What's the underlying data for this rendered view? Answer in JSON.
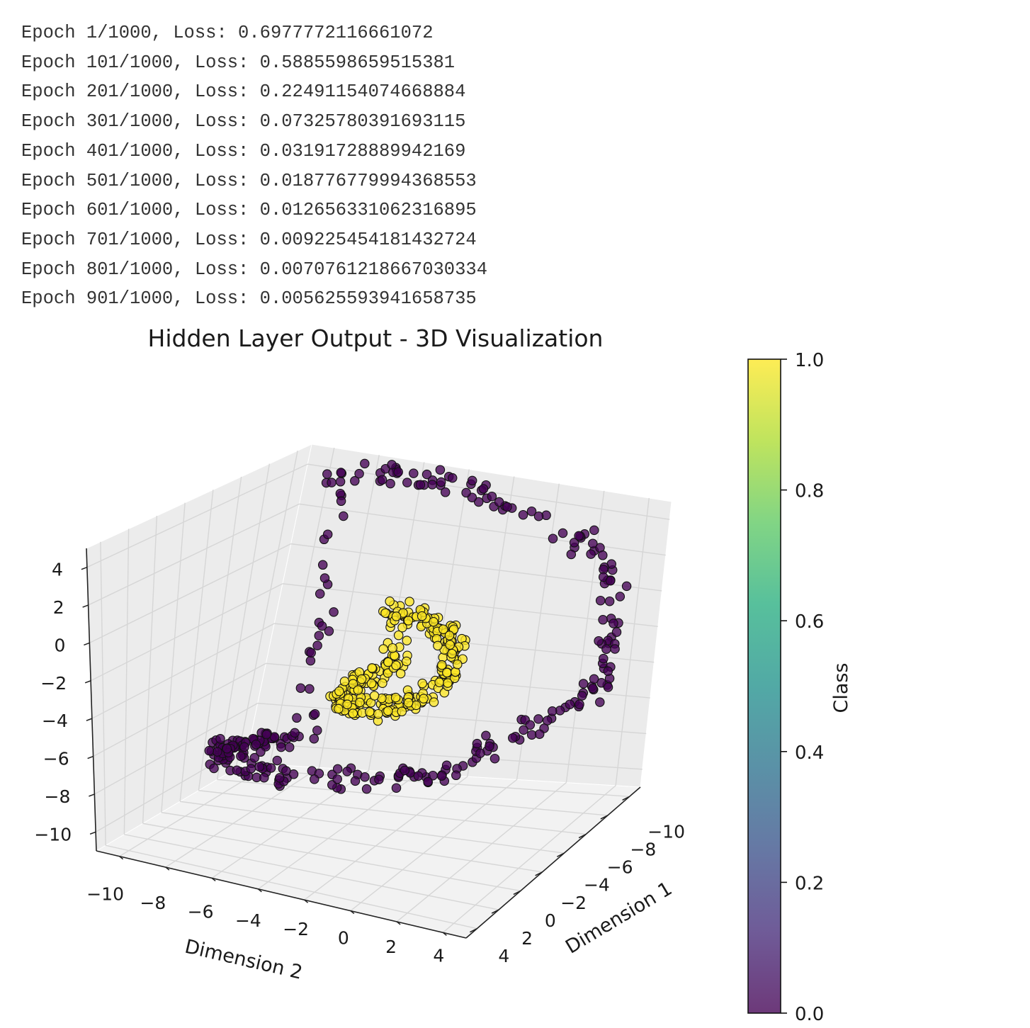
{
  "log_lines": [
    "Epoch 1/1000, Loss: 0.6977772116661072",
    "Epoch 101/1000, Loss: 0.5885598659515381",
    "Epoch 201/1000, Loss: 0.22491154074668884",
    "Epoch 301/1000, Loss: 0.07325780391693115",
    "Epoch 401/1000, Loss: 0.03191728889942169",
    "Epoch 501/1000, Loss: 0.018776779994368553",
    "Epoch 601/1000, Loss: 0.012656331062316895",
    "Epoch 701/1000, Loss: 0.009225454181432724",
    "Epoch 801/1000, Loss: 0.0070761218667030334",
    "Epoch 901/1000, Loss: 0.005625593941658735"
  ],
  "chart_data": {
    "type": "scatter",
    "projection": "3d",
    "title": "Hidden Layer Output - 3D Visualization",
    "x_axis": {
      "label": "Dimension 1",
      "ticks": [
        "−10",
        "−8",
        "−6",
        "−4",
        "−2",
        "0",
        "2",
        "4"
      ],
      "range": [
        -11,
        5
      ]
    },
    "y_axis": {
      "label": "Dimension 2",
      "ticks": [
        "−10",
        "−8",
        "−6",
        "−4",
        "−2",
        "0",
        "2",
        "4"
      ],
      "range": [
        -11,
        5
      ]
    },
    "z_axis": {
      "label": "",
      "ticks": [
        "−10",
        "−8",
        "−6",
        "−4",
        "−2",
        "0",
        "2",
        "4"
      ],
      "range": [
        -11,
        5
      ]
    },
    "colorbar": {
      "label": "Class",
      "ticks": [
        "0.0",
        "0.2",
        "0.4",
        "0.6",
        "0.8",
        "1.0"
      ],
      "range": [
        0,
        1
      ],
      "colormap": "viridis"
    },
    "grid": true,
    "series": [
      {
        "value": 0,
        "color": "#440154",
        "shape": "outer ring",
        "approx_count": 500,
        "points_sample": [
          [
            -8,
            -8,
            5
          ],
          [
            -9.4,
            -5.6,
            5
          ],
          [
            -10.4,
            -2.1,
            4
          ],
          [
            -9.4,
            2.1,
            3
          ],
          [
            -7.2,
            4.8,
            2
          ],
          [
            -4.3,
            6.2,
            1
          ],
          [
            -0.8,
            7.7,
            0
          ],
          [
            3.4,
            6.4,
            -1
          ],
          [
            5.5,
            4.8,
            -2
          ],
          [
            5.6,
            1.9,
            -3.5
          ],
          [
            4.7,
            -3.1,
            -5
          ],
          [
            2.1,
            -6.9,
            -6
          ],
          [
            -1.7,
            -8.4,
            -7
          ],
          [
            -4.9,
            -8.6,
            -8
          ],
          [
            -7.2,
            -7.4,
            -8
          ]
        ]
      },
      {
        "value": 1,
        "color": "#fde725",
        "shape": "inner ring",
        "approx_count": 500,
        "points_sample": [
          [
            -3.5,
            -2.5,
            1
          ],
          [
            -3.5,
            -1,
            0.5
          ],
          [
            -2.8,
            0.2,
            0
          ],
          [
            -1.5,
            1,
            -0.5
          ],
          [
            0,
            1.3,
            -1
          ],
          [
            1.2,
            0.8,
            -1.5
          ],
          [
            1.5,
            -0.3,
            -2
          ],
          [
            1,
            -1.8,
            -2.5
          ],
          [
            0,
            -2.8,
            -3
          ],
          [
            -1.3,
            -3.2,
            -3
          ],
          [
            -2.5,
            -3,
            -2.5
          ],
          [
            -3.3,
            -2.2,
            -2
          ]
        ]
      }
    ]
  }
}
